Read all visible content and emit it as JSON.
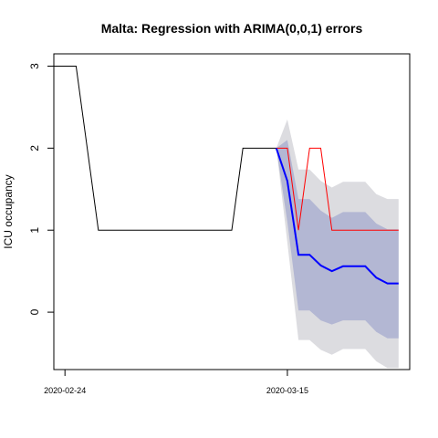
{
  "chart_data": {
    "type": "line",
    "title": "Malta: Regression with ARIMA(0,0,1) errors",
    "xlabel": "",
    "ylabel": "ICU occupancy",
    "xlim": [
      "2020-02-23",
      "2020-03-26"
    ],
    "ylim": [
      -0.7,
      3.15
    ],
    "x_ticks": [
      "2020-02-24",
      "2020-03-15"
    ],
    "y_ticks": [
      "0",
      "1",
      "2",
      "3"
    ],
    "grid": false,
    "legend": "none",
    "colors": {
      "observed": "#000000",
      "actual": "#ff0000",
      "forecast": "#0000ff",
      "band80": "#b3b7d3",
      "band95": "#dcdce0"
    },
    "observed": {
      "x": [
        "2020-02-23",
        "2020-02-24",
        "2020-02-25",
        "2020-02-26",
        "2020-02-27",
        "2020-02-28",
        "2020-02-29",
        "2020-03-01",
        "2020-03-02",
        "2020-03-03",
        "2020-03-04",
        "2020-03-05",
        "2020-03-06",
        "2020-03-07",
        "2020-03-08",
        "2020-03-09",
        "2020-03-10",
        "2020-03-11",
        "2020-03-12",
        "2020-03-13",
        "2020-03-14"
      ],
      "y": [
        3,
        3,
        3,
        2,
        1,
        1,
        1,
        1,
        1,
        1,
        1,
        1,
        1,
        1,
        1,
        1,
        1,
        2,
        2,
        2,
        2
      ]
    },
    "actual": {
      "x": [
        "2020-03-14",
        "2020-03-15",
        "2020-03-16",
        "2020-03-17",
        "2020-03-18",
        "2020-03-19",
        "2020-03-20",
        "2020-03-21",
        "2020-03-22",
        "2020-03-23",
        "2020-03-24",
        "2020-03-25"
      ],
      "y": [
        2,
        2,
        1,
        2,
        2,
        1,
        1,
        1,
        1,
        1,
        1,
        1
      ]
    },
    "forecast": {
      "x": [
        "2020-03-14",
        "2020-03-15",
        "2020-03-16",
        "2020-03-17",
        "2020-03-18",
        "2020-03-19",
        "2020-03-20",
        "2020-03-21",
        "2020-03-22",
        "2020-03-23",
        "2020-03-24",
        "2020-03-25"
      ],
      "mean": [
        2,
        1.6,
        0.7,
        0.7,
        0.57,
        0.5,
        0.56,
        0.56,
        0.56,
        0.42,
        0.35,
        0.35
      ],
      "lo80": [
        2,
        1.1,
        0.02,
        0.02,
        -0.1,
        -0.15,
        -0.1,
        -0.1,
        -0.1,
        -0.24,
        -0.32,
        -0.32
      ],
      "hi80": [
        2,
        2.1,
        1.38,
        1.38,
        1.24,
        1.15,
        1.22,
        1.22,
        1.22,
        1.08,
        1.01,
        1.01
      ],
      "lo95": [
        2,
        0.85,
        -0.34,
        -0.34,
        -0.46,
        -0.52,
        -0.45,
        -0.45,
        -0.45,
        -0.6,
        -0.68,
        -0.68
      ],
      "hi95": [
        2,
        2.35,
        1.74,
        1.74,
        1.6,
        1.52,
        1.59,
        1.59,
        1.59,
        1.44,
        1.38,
        1.38
      ]
    }
  }
}
